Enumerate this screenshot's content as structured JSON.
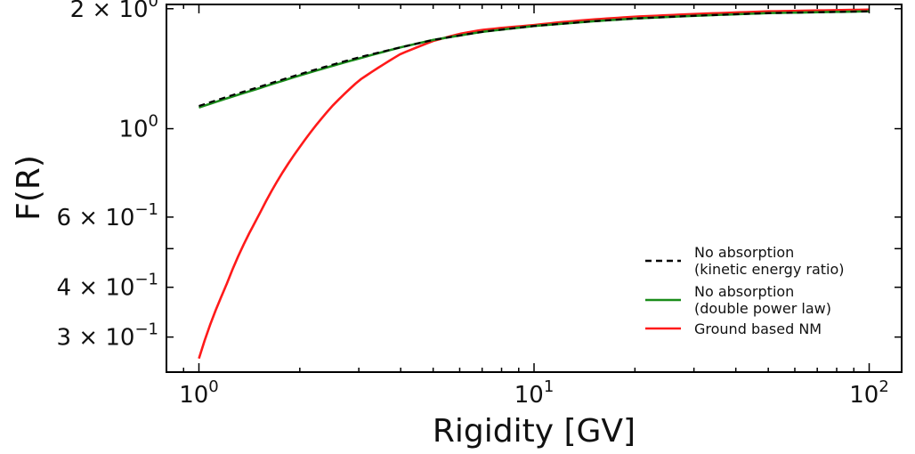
{
  "chart_data": {
    "type": "line",
    "title": "",
    "xlabel": "Rigidity [GV]",
    "ylabel": "F(R)",
    "xscale": "log",
    "yscale": "log",
    "xlim": [
      0.8,
      125
    ],
    "ylim": [
      0.245,
      2.05
    ],
    "grid": false,
    "legend_position": "lower-right",
    "x_ticks": [
      {
        "value": 1,
        "base": "10",
        "exp": "0"
      },
      {
        "value": 10,
        "base": "10",
        "exp": "1"
      },
      {
        "value": 100,
        "base": "10",
        "exp": "2"
      }
    ],
    "y_ticks": [
      {
        "value": 2.0,
        "mant": "2 × ",
        "base": "10",
        "exp": "0"
      },
      {
        "value": 1.0,
        "mant": "",
        "base": "10",
        "exp": "0"
      },
      {
        "value": 0.6,
        "mant": "6 × ",
        "base": "10",
        "exp": "−1"
      },
      {
        "value": 0.4,
        "mant": "4 × ",
        "base": "10",
        "exp": "−1"
      },
      {
        "value": 0.3,
        "mant": "3 × ",
        "base": "10",
        "exp": "−1"
      }
    ],
    "series": [
      {
        "name_lines": [
          "No absorption",
          " (kinetic energy ratio)"
        ],
        "color": "#000000",
        "style": "dashed",
        "x": [
          1,
          1.5,
          2,
          3,
          4,
          5,
          7,
          10,
          15,
          20,
          30,
          50,
          70,
          100
        ],
        "y": [
          1.14,
          1.27,
          1.37,
          1.51,
          1.6,
          1.67,
          1.75,
          1.81,
          1.86,
          1.89,
          1.92,
          1.95,
          1.96,
          1.97
        ]
      },
      {
        "name_lines": [
          "No absorption",
          " (double power law)"
        ],
        "color": "#1a8c1a",
        "style": "solid",
        "x": [
          1,
          1.5,
          2,
          3,
          4,
          5,
          7,
          10,
          15,
          20,
          30,
          50,
          70,
          100
        ],
        "y": [
          1.13,
          1.26,
          1.36,
          1.5,
          1.6,
          1.67,
          1.75,
          1.81,
          1.86,
          1.89,
          1.92,
          1.95,
          1.96,
          1.97
        ]
      },
      {
        "name_lines": [
          "Ground based NM"
        ],
        "color": "#ff1a1a",
        "style": "solid",
        "x": [
          1,
          1.2,
          1.5,
          2,
          2.5,
          3,
          4,
          5,
          6,
          7,
          8,
          10,
          12,
          15,
          20,
          30,
          50,
          70,
          100
        ],
        "y": [
          0.265,
          0.4,
          0.6,
          0.9,
          1.14,
          1.32,
          1.54,
          1.66,
          1.73,
          1.77,
          1.79,
          1.82,
          1.85,
          1.88,
          1.91,
          1.94,
          1.97,
          1.98,
          1.99
        ]
      }
    ]
  }
}
